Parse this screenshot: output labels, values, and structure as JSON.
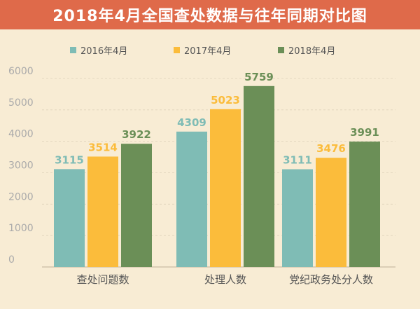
{
  "chart_data": {
    "type": "bar",
    "title": "2018年4月全国查处数据与往年同期对比图",
    "categories": [
      "查处问题数",
      "处理人数",
      "党纪政务处分人数"
    ],
    "series": [
      {
        "name": "2016年4月",
        "color": "#7fbcb5",
        "values": [
          3115,
          4309,
          3111
        ]
      },
      {
        "name": "2017年4月",
        "color": "#fbbc3b",
        "values": [
          3514,
          5023,
          3476
        ]
      },
      {
        "name": "2018年4月",
        "color": "#6b8f57",
        "values": [
          3922,
          5759,
          3991
        ]
      }
    ],
    "yticks": [
      0,
      1000,
      2000,
      3000,
      4000,
      5000,
      6000
    ],
    "ylim": [
      0,
      6000
    ],
    "xlabel": "",
    "ylabel": "",
    "legend_position": "top",
    "grid": true
  }
}
